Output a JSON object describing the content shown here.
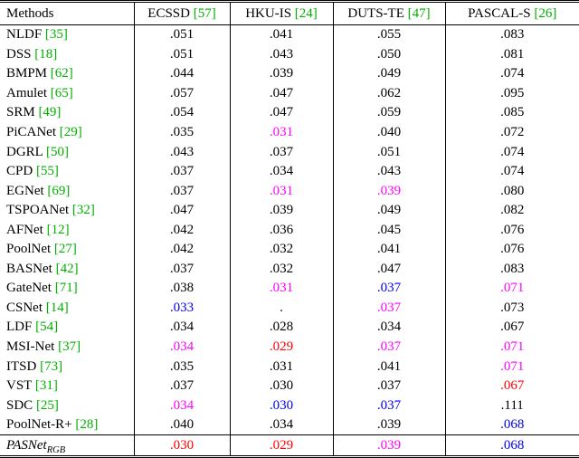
{
  "table": {
    "header": {
      "methods_label": "Methods",
      "columns": [
        {
          "name": "ECSSD",
          "cite": "[57]"
        },
        {
          "name": "HKU-IS",
          "cite": "[24]"
        },
        {
          "name": "DUTS-TE",
          "cite": "[47]"
        },
        {
          "name": "PASCAL-S",
          "cite": "[26]"
        }
      ]
    },
    "rows": [
      {
        "method": "NLDF",
        "cite": "[35]",
        "values": [
          {
            "v": ".051",
            "c": "black"
          },
          {
            "v": ".041",
            "c": "black"
          },
          {
            "v": ".055",
            "c": "black"
          },
          {
            "v": ".083",
            "c": "black"
          }
        ]
      },
      {
        "method": "DSS",
        "cite": "[18]",
        "values": [
          {
            "v": ".051",
            "c": "black"
          },
          {
            "v": ".043",
            "c": "black"
          },
          {
            "v": ".050",
            "c": "black"
          },
          {
            "v": ".081",
            "c": "black"
          }
        ]
      },
      {
        "method": "BMPM",
        "cite": "[62]",
        "values": [
          {
            "v": ".044",
            "c": "black"
          },
          {
            "v": ".039",
            "c": "black"
          },
          {
            "v": ".049",
            "c": "black"
          },
          {
            "v": ".074",
            "c": "black"
          }
        ]
      },
      {
        "method": "Amulet",
        "cite": "[65]",
        "values": [
          {
            "v": ".057",
            "c": "black"
          },
          {
            "v": ".047",
            "c": "black"
          },
          {
            "v": ".062",
            "c": "black"
          },
          {
            "v": ".095",
            "c": "black"
          }
        ]
      },
      {
        "method": "SRM",
        "cite": "[49]",
        "values": [
          {
            "v": ".054",
            "c": "black"
          },
          {
            "v": ".047",
            "c": "black"
          },
          {
            "v": ".059",
            "c": "black"
          },
          {
            "v": ".085",
            "c": "black"
          }
        ]
      },
      {
        "method": "PiCANet",
        "cite": "[29]",
        "values": [
          {
            "v": ".035",
            "c": "black"
          },
          {
            "v": ".031",
            "c": "magenta"
          },
          {
            "v": ".040",
            "c": "black"
          },
          {
            "v": ".072",
            "c": "black"
          }
        ]
      },
      {
        "method": "DGRL",
        "cite": "[50]",
        "values": [
          {
            "v": ".043",
            "c": "black"
          },
          {
            "v": ".037",
            "c": "black"
          },
          {
            "v": ".051",
            "c": "black"
          },
          {
            "v": ".074",
            "c": "black"
          }
        ]
      },
      {
        "method": "CPD",
        "cite": "[55]",
        "values": [
          {
            "v": ".037",
            "c": "black"
          },
          {
            "v": ".034",
            "c": "black"
          },
          {
            "v": ".043",
            "c": "black"
          },
          {
            "v": ".074",
            "c": "black"
          }
        ]
      },
      {
        "method": "EGNet",
        "cite": "[69]",
        "values": [
          {
            "v": ".037",
            "c": "black"
          },
          {
            "v": ".031",
            "c": "magenta"
          },
          {
            "v": ".039",
            "c": "magenta"
          },
          {
            "v": ".080",
            "c": "black"
          }
        ]
      },
      {
        "method": "TSPOANet",
        "cite": "[32]",
        "values": [
          {
            "v": ".047",
            "c": "black"
          },
          {
            "v": ".039",
            "c": "black"
          },
          {
            "v": ".049",
            "c": "black"
          },
          {
            "v": ".082",
            "c": "black"
          }
        ]
      },
      {
        "method": "AFNet",
        "cite": "[12]",
        "values": [
          {
            "v": ".042",
            "c": "black"
          },
          {
            "v": ".036",
            "c": "black"
          },
          {
            "v": ".045",
            "c": "black"
          },
          {
            "v": ".076",
            "c": "black"
          }
        ]
      },
      {
        "method": "PoolNet",
        "cite": "[27]",
        "values": [
          {
            "v": ".042",
            "c": "black"
          },
          {
            "v": ".032",
            "c": "black"
          },
          {
            "v": ".041",
            "c": "black"
          },
          {
            "v": ".076",
            "c": "black"
          }
        ]
      },
      {
        "method": "BASNet",
        "cite": "[42]",
        "values": [
          {
            "v": ".037",
            "c": "black"
          },
          {
            "v": ".032",
            "c": "black"
          },
          {
            "v": ".047",
            "c": "black"
          },
          {
            "v": ".083",
            "c": "black"
          }
        ]
      },
      {
        "method": "GateNet",
        "cite": "[71]",
        "values": [
          {
            "v": ".038",
            "c": "black"
          },
          {
            "v": ".031",
            "c": "magenta"
          },
          {
            "v": ".037",
            "c": "blue"
          },
          {
            "v": ".071",
            "c": "magenta"
          }
        ]
      },
      {
        "method": "CSNet",
        "cite": "[14]",
        "values": [
          {
            "v": ".033",
            "c": "blue"
          },
          {
            "v": ".",
            "c": "black"
          },
          {
            "v": ".037",
            "c": "magenta"
          },
          {
            "v": ".073",
            "c": "black"
          }
        ]
      },
      {
        "method": "LDF",
        "cite": "[54]",
        "values": [
          {
            "v": ".034",
            "c": "black"
          },
          {
            "v": ".028",
            "c": "black"
          },
          {
            "v": ".034",
            "c": "black"
          },
          {
            "v": ".067",
            "c": "black"
          }
        ]
      },
      {
        "method": "MSI-Net",
        "cite": "[37]",
        "values": [
          {
            "v": ".034",
            "c": "magenta"
          },
          {
            "v": ".029",
            "c": "red"
          },
          {
            "v": ".037",
            "c": "magenta"
          },
          {
            "v": ".071",
            "c": "magenta"
          }
        ]
      },
      {
        "method": "ITSD",
        "cite": "[73]",
        "values": [
          {
            "v": ".035",
            "c": "black"
          },
          {
            "v": ".031",
            "c": "black"
          },
          {
            "v": ".041",
            "c": "black"
          },
          {
            "v": ".071",
            "c": "magenta"
          }
        ]
      },
      {
        "method": "VST",
        "cite": "[31]",
        "values": [
          {
            "v": ".037",
            "c": "black"
          },
          {
            "v": ".030",
            "c": "black"
          },
          {
            "v": ".037",
            "c": "black"
          },
          {
            "v": ".067",
            "c": "red"
          }
        ]
      },
      {
        "method": "SDC",
        "cite": "[25]",
        "values": [
          {
            "v": ".034",
            "c": "magenta"
          },
          {
            "v": ".030",
            "c": "blue"
          },
          {
            "v": ".037",
            "c": "blue"
          },
          {
            "v": ".111",
            "c": "black"
          }
        ]
      },
      {
        "method": "PoolNet-R+",
        "cite": "[28]",
        "values": [
          {
            "v": ".040",
            "c": "black"
          },
          {
            "v": ".034",
            "c": "black"
          },
          {
            "v": ".039",
            "c": "black"
          },
          {
            "v": ".068",
            "c": "blue"
          }
        ]
      },
      {
        "method": "PASNet",
        "subscript": "RGB",
        "italic": true,
        "final": true,
        "values": [
          {
            "v": ".030",
            "c": "red"
          },
          {
            "v": ".029",
            "c": "red"
          },
          {
            "v": ".039",
            "c": "magenta"
          },
          {
            "v": ".068",
            "c": "blue"
          }
        ]
      }
    ],
    "colors": {
      "black": "#000000",
      "red": "#ff0000",
      "blue": "#0000ee",
      "magenta": "#ff00ff",
      "citation_green": "#00b000"
    }
  }
}
